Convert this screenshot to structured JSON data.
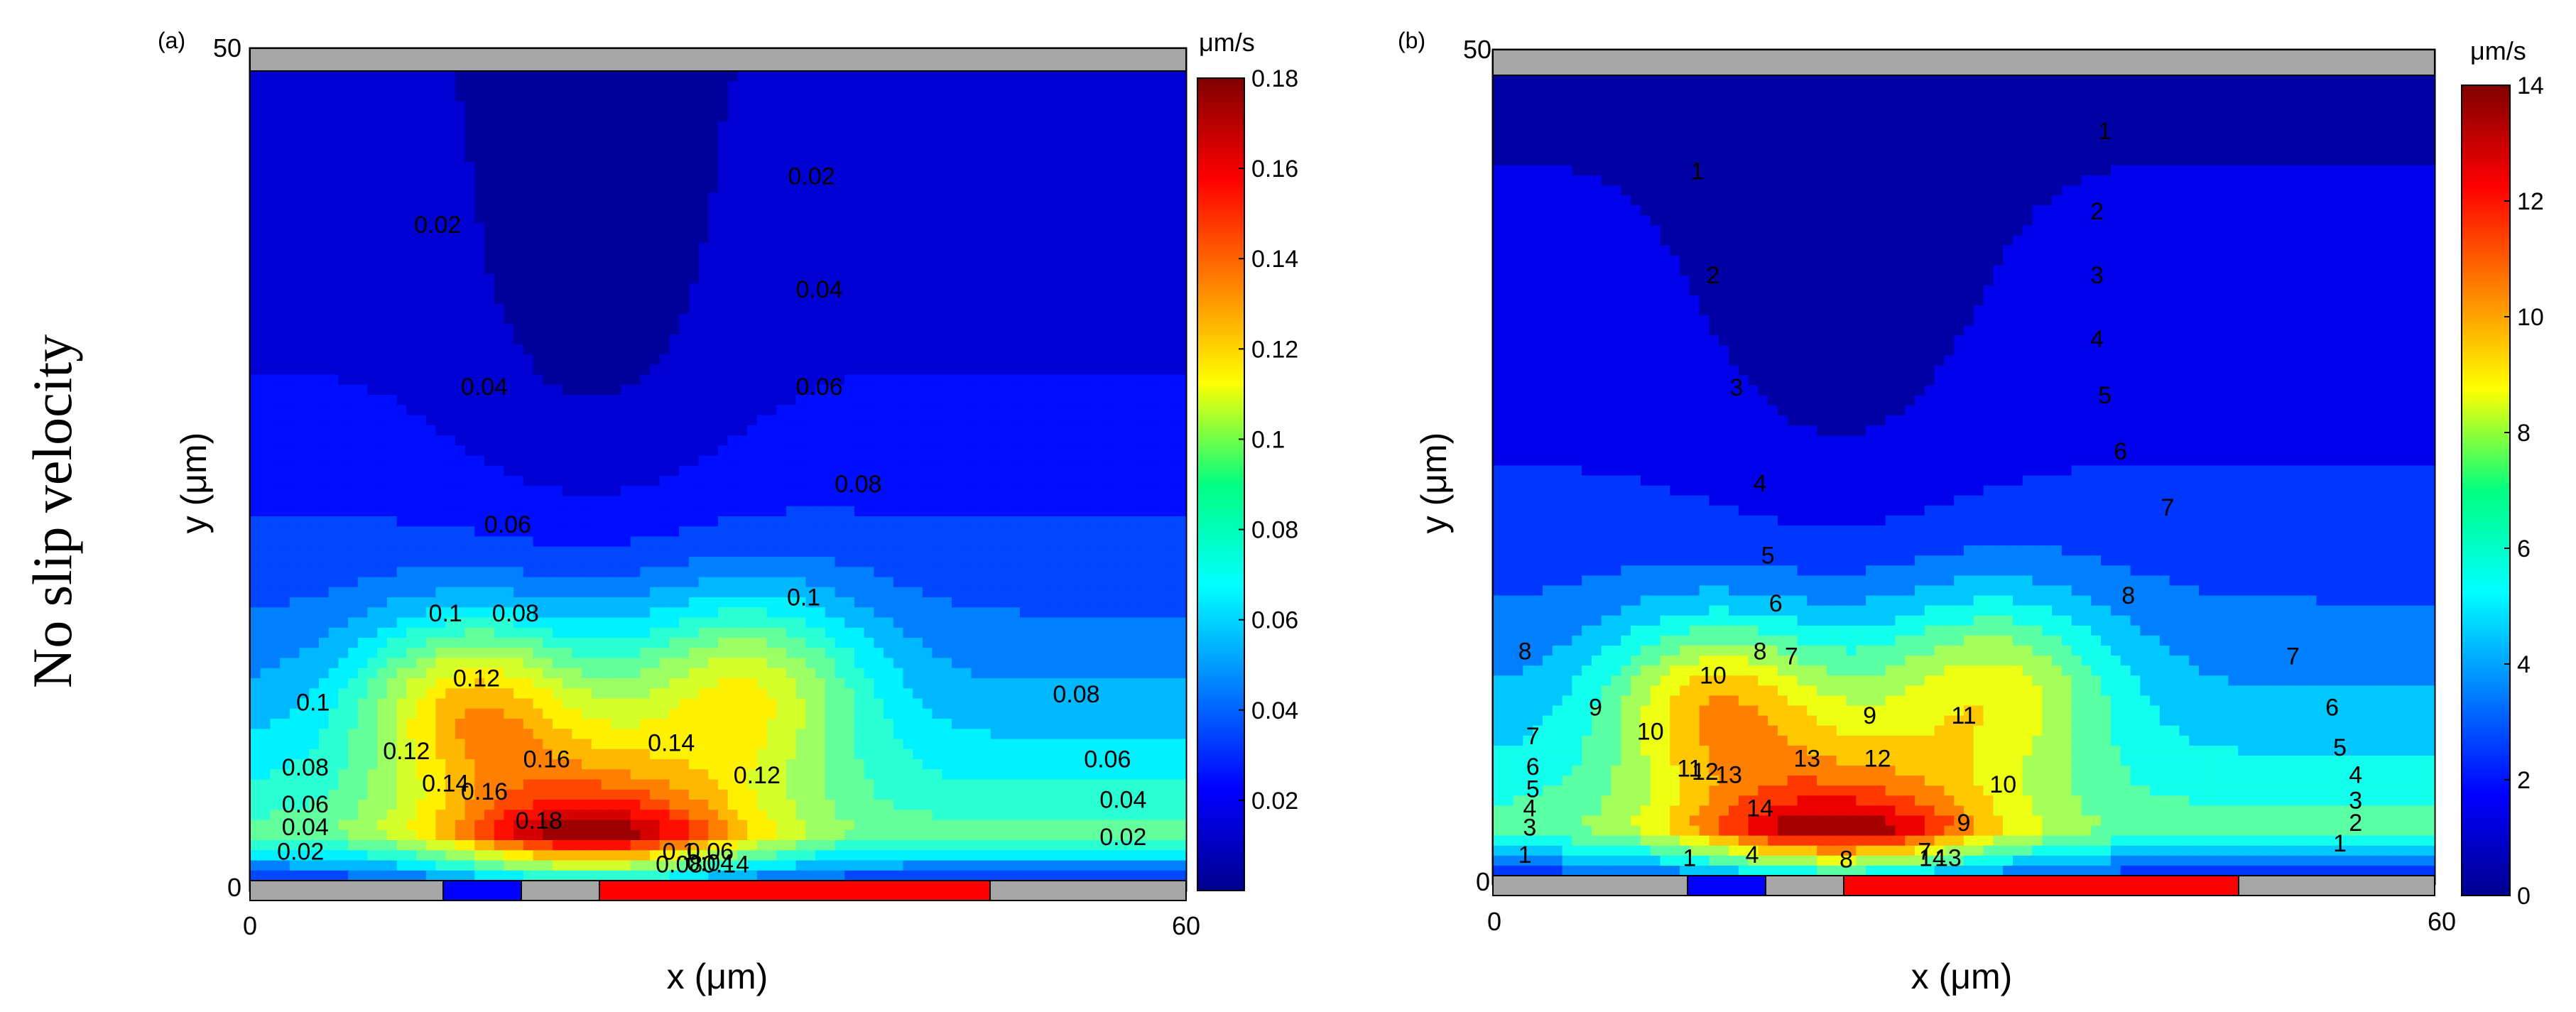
{
  "side_title": "No slip velocity",
  "chart_data": [
    {
      "type": "contour",
      "panel_label": "(a)",
      "xlabel": "x (μm)",
      "ylabel": "y (μm)",
      "xlim": [
        0,
        60
      ],
      "ylim": [
        0,
        50
      ],
      "x_ticks": [
        "0",
        "60"
      ],
      "y_ticks": [
        "0",
        "50"
      ],
      "colorbar_unit": "μm/s",
      "colorbar_range": [
        0,
        0.18
      ],
      "colorbar_ticks": [
        "0.02",
        "0.04",
        "0.06",
        "0.08",
        "0.1",
        "0.12",
        "0.14",
        "0.16",
        "0.18"
      ],
      "contour_levels": [
        0.01,
        0.02,
        0.03,
        0.04,
        0.05,
        0.06,
        0.07,
        0.08,
        0.09,
        0.1,
        0.11,
        0.12,
        0.13,
        0.14,
        0.15,
        0.16,
        0.17,
        0.18
      ],
      "contour_labels": [
        {
          "text": "0.02",
          "x": 12,
          "y": 40
        },
        {
          "text": "0.02",
          "x": 36,
          "y": 43
        },
        {
          "text": "0.04",
          "x": 36.5,
          "y": 36
        },
        {
          "text": "0.04",
          "x": 15,
          "y": 30
        },
        {
          "text": "0.06",
          "x": 36.5,
          "y": 30
        },
        {
          "text": "0.08",
          "x": 39,
          "y": 24
        },
        {
          "text": "0.06",
          "x": 16.5,
          "y": 21.5
        },
        {
          "text": "0.1",
          "x": 12.5,
          "y": 16
        },
        {
          "text": "0.08",
          "x": 17,
          "y": 16
        },
        {
          "text": "0.1",
          "x": 35.5,
          "y": 17
        },
        {
          "text": "0.12",
          "x": 14.5,
          "y": 12
        },
        {
          "text": "0.1",
          "x": 4,
          "y": 10.5
        },
        {
          "text": "0.14",
          "x": 27,
          "y": 8
        },
        {
          "text": "0.12",
          "x": 10,
          "y": 7.5
        },
        {
          "text": "0.16",
          "x": 19,
          "y": 7
        },
        {
          "text": "0.12",
          "x": 32.5,
          "y": 6
        },
        {
          "text": "0.08",
          "x": 3.5,
          "y": 6.5
        },
        {
          "text": "0.14",
          "x": 12.5,
          "y": 5.5
        },
        {
          "text": "0.16",
          "x": 15,
          "y": 5
        },
        {
          "text": "0.06",
          "x": 3.5,
          "y": 4.2
        },
        {
          "text": "0.18",
          "x": 18.5,
          "y": 3.2
        },
        {
          "text": "0.04",
          "x": 3.5,
          "y": 2.8
        },
        {
          "text": "0.02",
          "x": 3.2,
          "y": 1.3
        },
        {
          "text": "0.08",
          "x": 53,
          "y": 11
        },
        {
          "text": "0.06",
          "x": 55,
          "y": 7
        },
        {
          "text": "0.04",
          "x": 56,
          "y": 4.5
        },
        {
          "text": "0.02",
          "x": 56,
          "y": 2.2
        },
        {
          "text": "0.1",
          "x": 27.5,
          "y": 1.3
        },
        {
          "text": "0.06",
          "x": 29.5,
          "y": 1.3
        },
        {
          "text": "0.04",
          "x": 29.5,
          "y": 0.6
        },
        {
          "text": "0.08",
          "x": 27.5,
          "y": 0.5
        },
        {
          "text": "0.14",
          "x": 30.5,
          "y": 0.5
        }
      ]
    },
    {
      "type": "contour",
      "panel_label": "(b)",
      "xlabel": "x (μm)",
      "ylabel": "y (μm)",
      "xlim": [
        0,
        60
      ],
      "ylim": [
        0,
        50
      ],
      "x_ticks": [
        "0",
        "60"
      ],
      "y_ticks": [
        "0",
        "50"
      ],
      "colorbar_unit": "μm/s",
      "colorbar_range": [
        0,
        14
      ],
      "colorbar_ticks": [
        "0",
        "2",
        "4",
        "6",
        "8",
        "10",
        "12",
        "14"
      ],
      "contour_levels": [
        1,
        2,
        3,
        4,
        5,
        6,
        7,
        8,
        9,
        10,
        11,
        12,
        13,
        14
      ],
      "contour_labels": [
        {
          "text": "1",
          "x": 39,
          "y": 46
        },
        {
          "text": "1",
          "x": 13,
          "y": 43.5
        },
        {
          "text": "2",
          "x": 38.5,
          "y": 41
        },
        {
          "text": "2",
          "x": 14,
          "y": 37
        },
        {
          "text": "3",
          "x": 38.5,
          "y": 37
        },
        {
          "text": "4",
          "x": 38.5,
          "y": 33
        },
        {
          "text": "3",
          "x": 15.5,
          "y": 30
        },
        {
          "text": "5",
          "x": 39,
          "y": 29.5
        },
        {
          "text": "6",
          "x": 40,
          "y": 26
        },
        {
          "text": "4",
          "x": 17,
          "y": 24
        },
        {
          "text": "7",
          "x": 43,
          "y": 22.5
        },
        {
          "text": "5",
          "x": 17.5,
          "y": 19.5
        },
        {
          "text": "8",
          "x": 40.5,
          "y": 17
        },
        {
          "text": "6",
          "x": 18,
          "y": 16.5
        },
        {
          "text": "8",
          "x": 2,
          "y": 13.5
        },
        {
          "text": "8",
          "x": 17,
          "y": 13.5
        },
        {
          "text": "7",
          "x": 19,
          "y": 13.2
        },
        {
          "text": "10",
          "x": 14,
          "y": 12
        },
        {
          "text": "7",
          "x": 51,
          "y": 13.2
        },
        {
          "text": "9",
          "x": 6.5,
          "y": 10
        },
        {
          "text": "9",
          "x": 24,
          "y": 9.5
        },
        {
          "text": "11",
          "x": 30,
          "y": 9.5
        },
        {
          "text": "6",
          "x": 53.5,
          "y": 10
        },
        {
          "text": "10",
          "x": 10,
          "y": 8.5
        },
        {
          "text": "7",
          "x": 2.5,
          "y": 8.2
        },
        {
          "text": "13",
          "x": 20,
          "y": 6.8
        },
        {
          "text": "12",
          "x": 24.5,
          "y": 6.8
        },
        {
          "text": "5",
          "x": 54,
          "y": 7.5
        },
        {
          "text": "6",
          "x": 2.5,
          "y": 6.3
        },
        {
          "text": "11",
          "x": 12.5,
          "y": 6.2
        },
        {
          "text": "12",
          "x": 13.5,
          "y": 6
        },
        {
          "text": "13",
          "x": 15,
          "y": 5.8
        },
        {
          "text": "10",
          "x": 32.5,
          "y": 5.2
        },
        {
          "text": "4",
          "x": 55,
          "y": 5.8
        },
        {
          "text": "5",
          "x": 2.5,
          "y": 4.9
        },
        {
          "text": "3",
          "x": 55,
          "y": 4.2
        },
        {
          "text": "4",
          "x": 2.3,
          "y": 3.7
        },
        {
          "text": "14",
          "x": 17,
          "y": 3.7
        },
        {
          "text": "9",
          "x": 30,
          "y": 2.8
        },
        {
          "text": "2",
          "x": 55,
          "y": 2.8
        },
        {
          "text": "3",
          "x": 2.3,
          "y": 2.5
        },
        {
          "text": "1",
          "x": 54,
          "y": 1.5
        },
        {
          "text": "1",
          "x": 2,
          "y": 0.8
        },
        {
          "text": "1",
          "x": 12.5,
          "y": 0.6
        },
        {
          "text": "4",
          "x": 16.5,
          "y": 0.8
        },
        {
          "text": "8",
          "x": 22.5,
          "y": 0.5
        },
        {
          "text": "7",
          "x": 27.5,
          "y": 1.0
        },
        {
          "text": "14",
          "x": 28,
          "y": 0.6
        },
        {
          "text": "13",
          "x": 29,
          "y": 0.6
        }
      ]
    }
  ]
}
